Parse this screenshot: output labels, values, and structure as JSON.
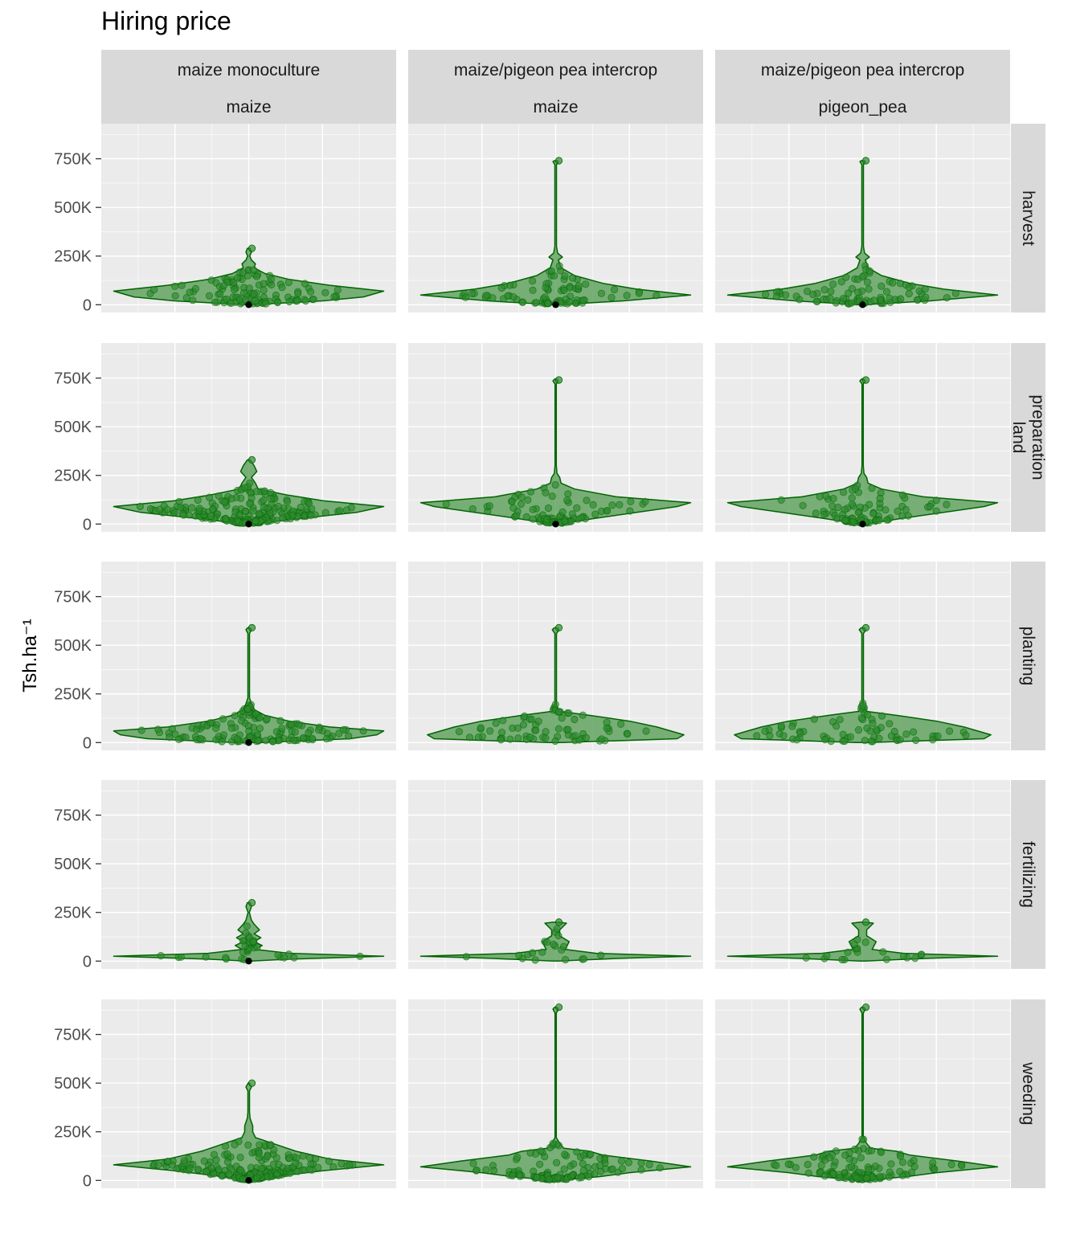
{
  "title": "Hiring price",
  "chart_data": {
    "type": "violin",
    "title": "Hiring price",
    "ylabel": "Tsh.ha⁻¹",
    "xlabel": "",
    "ylim": [
      -40000,
      930000
    ],
    "y_ticks": [
      0,
      250000,
      500000,
      750000
    ],
    "y_tick_labels": [
      "0",
      "250K",
      "500K",
      "750K"
    ],
    "fill_color": "#4f9a4f",
    "line_color": "#006400",
    "point_color": "#2e8b2e",
    "median_color": "#000000",
    "panel_bg": "#ebebeb",
    "strip_bg": "#d9d9d9",
    "grid_color": "#ffffff",
    "columns": [
      {
        "lines": [
          "maize monoculture",
          "maize"
        ]
      },
      {
        "lines": [
          "maize/pigeon pea intercrop",
          "maize"
        ]
      },
      {
        "lines": [
          "maize/pigeon pea intercrop",
          "pigeon_pea"
        ]
      }
    ],
    "rows": [
      {
        "lines": [
          "harvest"
        ]
      },
      {
        "lines": [
          "land",
          "preparation"
        ]
      },
      {
        "lines": [
          "planting"
        ]
      },
      {
        "lines": [
          "fertilizing"
        ]
      },
      {
        "lines": [
          "weeding"
        ]
      }
    ],
    "panels": [
      [
        {
          "median": 0,
          "max": 290000,
          "n": 110,
          "profile": [
            [
              0,
              0.02
            ],
            [
              20000,
              0.55
            ],
            [
              40000,
              0.85
            ],
            [
              70000,
              1.0
            ],
            [
              100000,
              0.6
            ],
            [
              130000,
              0.3
            ],
            [
              160000,
              0.12
            ],
            [
              190000,
              0.04
            ],
            [
              210000,
              0.05
            ],
            [
              230000,
              0.02
            ],
            [
              250000,
              0.008
            ],
            [
              270000,
              0.02
            ],
            [
              290000,
              0.01
            ]
          ]
        },
        {
          "median": 0,
          "max": 740000,
          "n": 85,
          "profile": [
            [
              0,
              0.02
            ],
            [
              20000,
              0.5
            ],
            [
              50000,
              1.0
            ],
            [
              80000,
              0.6
            ],
            [
              110000,
              0.35
            ],
            [
              150000,
              0.14
            ],
            [
              190000,
              0.04
            ],
            [
              230000,
              0.02
            ],
            [
              245000,
              0.05
            ],
            [
              265000,
              0.015
            ],
            [
              300000,
              0.006
            ],
            [
              720000,
              0.006
            ],
            [
              735000,
              0.02
            ],
            [
              740000,
              0.01
            ]
          ]
        },
        {
          "median": 0,
          "max": 740000,
          "n": 85,
          "profile": [
            [
              0,
              0.02
            ],
            [
              20000,
              0.5
            ],
            [
              50000,
              1.0
            ],
            [
              80000,
              0.6
            ],
            [
              110000,
              0.35
            ],
            [
              150000,
              0.14
            ],
            [
              190000,
              0.04
            ],
            [
              230000,
              0.02
            ],
            [
              245000,
              0.05
            ],
            [
              265000,
              0.015
            ],
            [
              300000,
              0.006
            ],
            [
              720000,
              0.006
            ],
            [
              735000,
              0.02
            ],
            [
              740000,
              0.01
            ]
          ]
        }
      ],
      [
        {
          "median": 0,
          "max": 330000,
          "n": 220,
          "profile": [
            [
              0,
              0.02
            ],
            [
              30000,
              0.4
            ],
            [
              60000,
              0.8
            ],
            [
              90000,
              1.0
            ],
            [
              120000,
              0.55
            ],
            [
              150000,
              0.28
            ],
            [
              180000,
              0.07
            ],
            [
              210000,
              0.05
            ],
            [
              240000,
              0.02
            ],
            [
              270000,
              0.06
            ],
            [
              300000,
              0.04
            ],
            [
              330000,
              0.01
            ]
          ]
        },
        {
          "median": 0,
          "max": 740000,
          "n": 90,
          "profile": [
            [
              0,
              0.02
            ],
            [
              30000,
              0.3
            ],
            [
              60000,
              0.6
            ],
            [
              90000,
              0.9
            ],
            [
              110000,
              1.0
            ],
            [
              140000,
              0.45
            ],
            [
              180000,
              0.14
            ],
            [
              210000,
              0.04
            ],
            [
              240000,
              0.03
            ],
            [
              260000,
              0.01
            ],
            [
              300000,
              0.005
            ],
            [
              720000,
              0.005
            ],
            [
              735000,
              0.02
            ],
            [
              745000,
              0.008
            ]
          ]
        },
        {
          "median": 0,
          "max": 740000,
          "n": 90,
          "profile": [
            [
              0,
              0.02
            ],
            [
              30000,
              0.3
            ],
            [
              60000,
              0.6
            ],
            [
              90000,
              0.9
            ],
            [
              110000,
              1.0
            ],
            [
              140000,
              0.45
            ],
            [
              180000,
              0.14
            ],
            [
              210000,
              0.04
            ],
            [
              240000,
              0.03
            ],
            [
              260000,
              0.01
            ],
            [
              300000,
              0.005
            ],
            [
              720000,
              0.005
            ],
            [
              735000,
              0.02
            ],
            [
              745000,
              0.008
            ]
          ]
        }
      ],
      [
        {
          "median": 0,
          "max": 590000,
          "n": 140,
          "profile": [
            [
              0,
              0.1
            ],
            [
              20000,
              0.75
            ],
            [
              40000,
              0.95
            ],
            [
              60000,
              1.0
            ],
            [
              80000,
              0.6
            ],
            [
              110000,
              0.3
            ],
            [
              140000,
              0.12
            ],
            [
              170000,
              0.04
            ],
            [
              200000,
              0.02
            ],
            [
              230000,
              0.006
            ],
            [
              560000,
              0.006
            ],
            [
              580000,
              0.02
            ],
            [
              590000,
              0.008
            ]
          ]
        },
        {
          "median": null,
          "max": 590000,
          "n": 70,
          "profile": [
            [
              0,
              0.05
            ],
            [
              20000,
              0.9
            ],
            [
              40000,
              0.95
            ],
            [
              80000,
              0.75
            ],
            [
              110000,
              0.55
            ],
            [
              140000,
              0.25
            ],
            [
              160000,
              0.03
            ],
            [
              190000,
              0.006
            ],
            [
              560000,
              0.006
            ],
            [
              580000,
              0.025
            ],
            [
              590000,
              0.01
            ]
          ]
        },
        {
          "median": null,
          "max": 590000,
          "n": 70,
          "profile": [
            [
              0,
              0.05
            ],
            [
              20000,
              0.9
            ],
            [
              40000,
              0.95
            ],
            [
              80000,
              0.75
            ],
            [
              110000,
              0.55
            ],
            [
              140000,
              0.25
            ],
            [
              160000,
              0.03
            ],
            [
              190000,
              0.006
            ],
            [
              560000,
              0.006
            ],
            [
              580000,
              0.025
            ],
            [
              590000,
              0.01
            ]
          ]
        }
      ],
      [
        {
          "median": 0,
          "max": 300000,
          "n": 35,
          "profile": [
            [
              0,
              0.02
            ],
            [
              10000,
              0.3
            ],
            [
              25000,
              1.0
            ],
            [
              40000,
              0.3
            ],
            [
              60000,
              0.05
            ],
            [
              80000,
              0.1
            ],
            [
              100000,
              0.04
            ],
            [
              120000,
              0.09
            ],
            [
              140000,
              0.04
            ],
            [
              160000,
              0.08
            ],
            [
              190000,
              0.04
            ],
            [
              210000,
              0.02
            ],
            [
              250000,
              0.005
            ],
            [
              280000,
              0.02
            ],
            [
              300000,
              0.01
            ]
          ]
        },
        {
          "median": null,
          "max": 200000,
          "n": 20,
          "profile": [
            [
              0,
              0.02
            ],
            [
              15000,
              0.5
            ],
            [
              25000,
              1.0
            ],
            [
              40000,
              0.3
            ],
            [
              60000,
              0.07
            ],
            [
              100000,
              0.1
            ],
            [
              130000,
              0.03
            ],
            [
              160000,
              0.03
            ],
            [
              195000,
              0.08
            ],
            [
              200000,
              0.02
            ]
          ]
        },
        {
          "median": null,
          "max": 200000,
          "n": 20,
          "profile": [
            [
              0,
              0.02
            ],
            [
              15000,
              0.5
            ],
            [
              25000,
              1.0
            ],
            [
              40000,
              0.3
            ],
            [
              60000,
              0.07
            ],
            [
              100000,
              0.1
            ],
            [
              130000,
              0.03
            ],
            [
              160000,
              0.03
            ],
            [
              195000,
              0.08
            ],
            [
              200000,
              0.02
            ]
          ]
        }
      ],
      [
        {
          "median": 0,
          "max": 500000,
          "n": 230,
          "profile": [
            [
              0,
              0.02
            ],
            [
              20000,
              0.2
            ],
            [
              50000,
              0.55
            ],
            [
              80000,
              1.0
            ],
            [
              110000,
              0.6
            ],
            [
              150000,
              0.35
            ],
            [
              190000,
              0.18
            ],
            [
              220000,
              0.05
            ],
            [
              250000,
              0.03
            ],
            [
              280000,
              0.03
            ],
            [
              320000,
              0.01
            ],
            [
              350000,
              0.006
            ],
            [
              460000,
              0.006
            ],
            [
              480000,
              0.02
            ],
            [
              500000,
              0.005
            ]
          ]
        },
        {
          "median": null,
          "max": 890000,
          "n": 120,
          "profile": [
            [
              0,
              0.02
            ],
            [
              20000,
              0.33
            ],
            [
              40000,
              0.55
            ],
            [
              70000,
              1.0
            ],
            [
              100000,
              0.7
            ],
            [
              130000,
              0.35
            ],
            [
              150000,
              0.25
            ],
            [
              165000,
              0.06
            ],
            [
              190000,
              0.03
            ],
            [
              220000,
              0.005
            ],
            [
              860000,
              0.005
            ],
            [
              880000,
              0.02
            ],
            [
              890000,
              0.008
            ]
          ]
        },
        {
          "median": null,
          "max": 890000,
          "n": 120,
          "profile": [
            [
              0,
              0.02
            ],
            [
              20000,
              0.33
            ],
            [
              40000,
              0.55
            ],
            [
              70000,
              1.0
            ],
            [
              100000,
              0.7
            ],
            [
              130000,
              0.35
            ],
            [
              150000,
              0.25
            ],
            [
              165000,
              0.06
            ],
            [
              190000,
              0.03
            ],
            [
              220000,
              0.005
            ],
            [
              860000,
              0.005
            ],
            [
              880000,
              0.02
            ],
            [
              890000,
              0.008
            ]
          ]
        }
      ]
    ]
  }
}
